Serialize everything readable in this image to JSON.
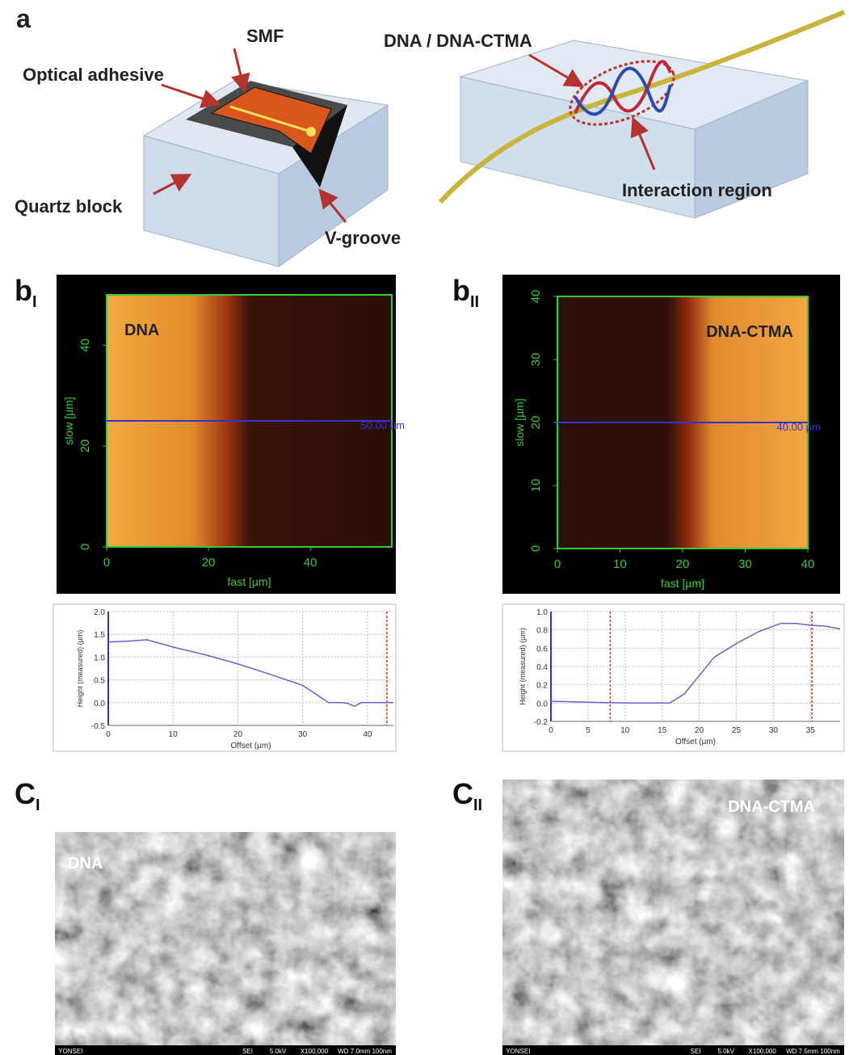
{
  "panel_a": {
    "label": "a",
    "smf": "SMF",
    "adhesive": "Optical adhesive",
    "quartz": "Quartz block",
    "vgroove": "V-groove",
    "dna": "DNA / DNA-CTMA",
    "interaction": "Interaction region"
  },
  "afm": [
    {
      "label": "b",
      "sublabel": "I",
      "sample": "DNA",
      "xlabel": "fast [µm]",
      "ylabel": "slow [µm]",
      "xlim": [
        0,
        56
      ],
      "ylim": [
        0,
        50
      ],
      "xticks": [
        0,
        20,
        40
      ],
      "yticks": [
        0,
        20,
        40
      ],
      "cursor_y": 25,
      "cursor_label": "50.00 µm"
    },
    {
      "label": "b",
      "sublabel": "II",
      "sample": "DNA-CTMA",
      "xlabel": "fast [µm]",
      "ylabel": "slow [µm]",
      "xlim": [
        0,
        40
      ],
      "ylim": [
        0,
        40
      ],
      "xticks": [
        0,
        10,
        20,
        30,
        40
      ],
      "yticks": [
        0,
        10,
        20,
        30,
        40
      ],
      "cursor_y": 20,
      "cursor_label": "40.00 µm"
    }
  ],
  "chart_data": [
    {
      "type": "line",
      "x_label": "Offset (µm)",
      "y_label": "Height (measured) (µm)",
      "color": "#6b62d6",
      "grid": true,
      "x": [
        0,
        3,
        6,
        8,
        10,
        15,
        20,
        25,
        30,
        34,
        36,
        37,
        38,
        39,
        44
      ],
      "values": [
        1.33,
        1.35,
        1.38,
        1.3,
        1.22,
        1.05,
        0.85,
        0.62,
        0.38,
        0.0,
        0.0,
        -0.02,
        -0.08,
        0.0,
        0.0
      ],
      "markers": [
        43
      ],
      "xlim": [
        0,
        44
      ],
      "ylim": [
        -0.5,
        2.0
      ],
      "xticks": [
        0,
        10,
        20,
        30,
        40
      ],
      "yticks": [
        -0.5,
        {
          "value": 0,
          "label": "0.0"
        },
        0.5,
        {
          "value": 1,
          "label": "1.0"
        },
        1.5,
        {
          "value": 2,
          "label": "2.0"
        }
      ]
    },
    {
      "type": "line",
      "x_label": "Offset (µm)",
      "y_label": "Height (measured) (µm)",
      "color": "#6b62d6",
      "grid": true,
      "x": [
        0,
        5,
        10,
        15,
        16,
        18,
        20,
        22,
        25,
        28,
        31,
        33,
        35,
        37,
        39
      ],
      "values": [
        0.02,
        0.01,
        0.0,
        0.0,
        0.0,
        0.1,
        0.3,
        0.5,
        0.65,
        0.78,
        0.87,
        0.87,
        0.85,
        0.84,
        0.81
      ],
      "markers": [
        8,
        35.2
      ],
      "xlim": [
        0,
        39
      ],
      "ylim": [
        -0.2,
        1.0
      ],
      "xticks": [
        0,
        5,
        10,
        15,
        20,
        25,
        30,
        35
      ],
      "yticks": [
        -0.2,
        {
          "value": 0,
          "label": "0.0"
        },
        0.2,
        0.4,
        0.6,
        0.8,
        {
          "value": 1,
          "label": "1.0"
        }
      ]
    }
  ],
  "sem": [
    {
      "label": "C",
      "sublabel": "I",
      "sample": "DNA",
      "footer": [
        "YONSEI",
        "SEI",
        "5.0kV",
        "X100,000",
        "WD 7.0mm",
        "100nm"
      ]
    },
    {
      "label": "C",
      "sublabel": "II",
      "sample": "DNA-CTMA",
      "footer": [
        "YONSEI",
        "SEI",
        "5.0kV",
        "X100,000",
        "WD 7.5mm",
        "100nm"
      ]
    }
  ]
}
